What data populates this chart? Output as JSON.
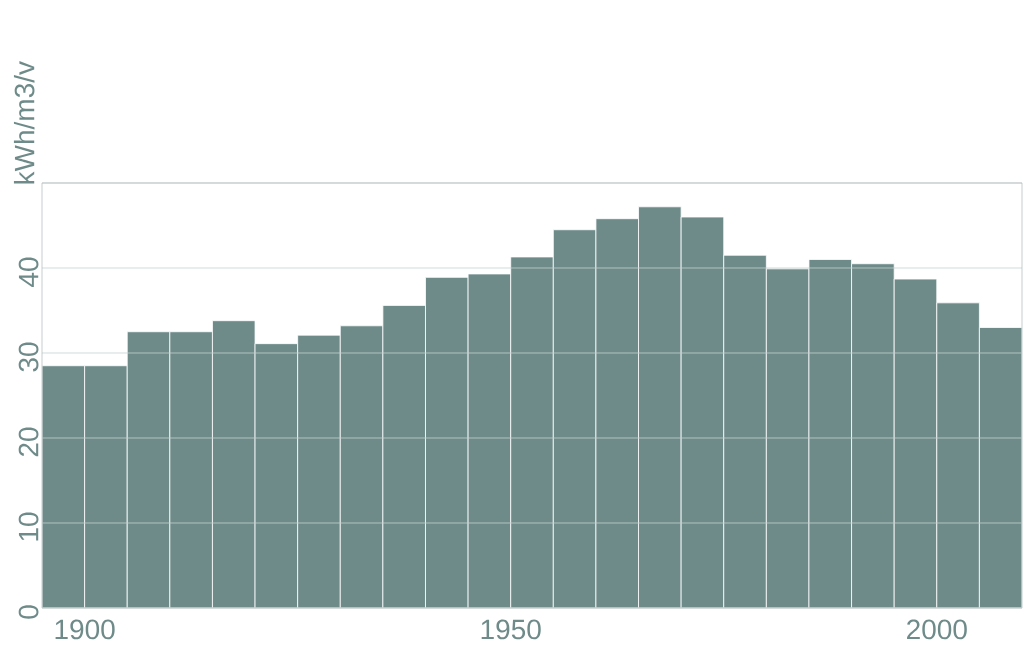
{
  "chart_data": {
    "type": "histogram",
    "ylabel": "kWh/m3/v",
    "bins": [
      1895,
      1900,
      1905,
      1910,
      1915,
      1920,
      1925,
      1930,
      1935,
      1940,
      1945,
      1950,
      1955,
      1960,
      1965,
      1970,
      1975,
      1980,
      1985,
      1990,
      1995,
      2000,
      2005,
      2010
    ],
    "values": [
      28.5,
      28.5,
      32.5,
      32.5,
      33.8,
      31.1,
      32.1,
      33.2,
      35.6,
      38.9,
      39.3,
      41.3,
      44.5,
      45.8,
      47.2,
      46.0,
      41.5,
      39.9,
      41.0,
      40.5,
      38.7,
      35.9,
      33.0
    ],
    "color": "#6e8b8a",
    "xlim": [
      1895,
      2010
    ],
    "ylim": [
      0,
      50
    ],
    "xticks": [
      1900,
      1950,
      2000
    ],
    "yticks": [
      0,
      10,
      20,
      30,
      40,
      {
        "value": 50,
        "label": null
      }
    ],
    "grid": "y"
  }
}
